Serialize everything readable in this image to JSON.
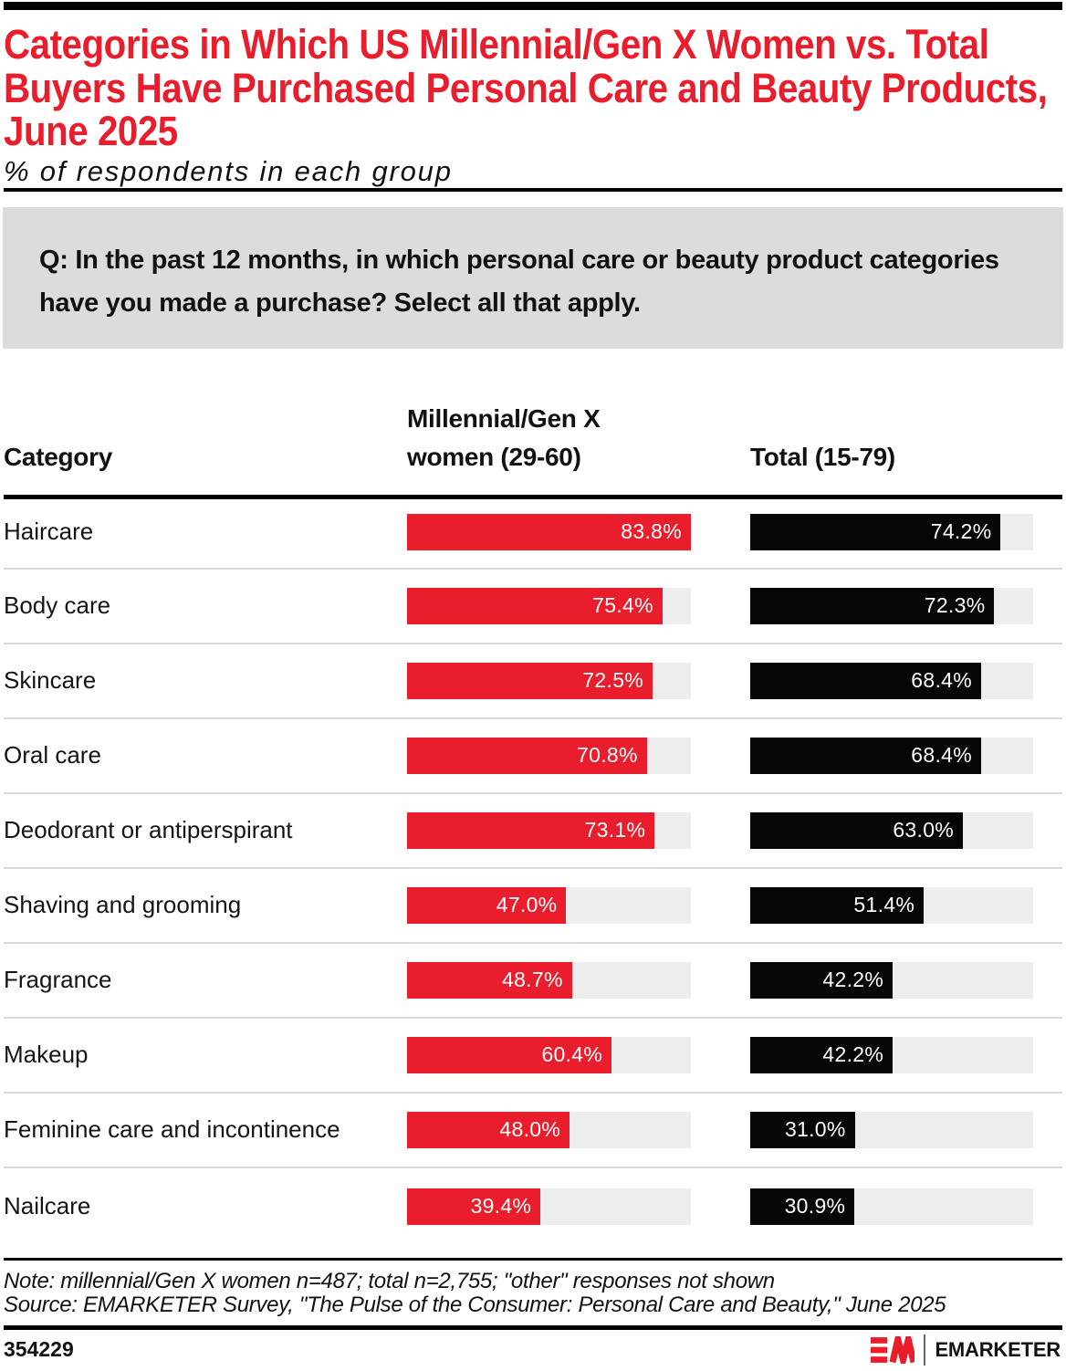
{
  "colors": {
    "accent_red": "#e91d2c",
    "bar_black": "#060606",
    "track_gray": "#ededed",
    "divider_gray": "#d9d9d9",
    "question_box_bg": "#dcdcdc"
  },
  "title": "Categories in Which US Millennial/Gen X Women vs. Total\nBuyers Have Purchased Personal Care and Beauty Products,\nJune 2025",
  "subtitle": "% of respondents in each group",
  "question": "Q: In the past 12 months, in which personal care or beauty product categories\nhave you made a purchase? Select all that apply.",
  "table": {
    "category_header": "Category",
    "women_header": "Millennial/Gen X\nwomen (29-60)",
    "total_header": "Total (15-79)"
  },
  "chart_data": {
    "type": "bar",
    "orientation": "horizontal",
    "categories": [
      "Haircare",
      "Body care",
      "Skincare",
      "Oral care",
      "Deodorant or antiperspirant",
      "Shaving and grooming",
      "Fragrance",
      "Makeup",
      "Feminine care and incontinence",
      "Nailcare"
    ],
    "series": [
      {
        "name": "Millennial/Gen X women (29-60)",
        "color": "#e91d2c",
        "values": [
          83.8,
          75.4,
          72.5,
          70.8,
          73.1,
          47.0,
          48.7,
          60.4,
          48.0,
          39.4
        ]
      },
      {
        "name": "Total (15-79)",
        "color": "#060606",
        "values": [
          74.2,
          72.3,
          68.4,
          68.4,
          63.0,
          51.4,
          42.2,
          42.2,
          31.0,
          30.9
        ]
      }
    ],
    "value_suffix": "%",
    "value_labels_shown": true,
    "xmax": 83.8,
    "title": "Categories in Which US Millennial/Gen X Women vs. Total Buyers Have Purchased Personal Care and Beauty Products, June 2025",
    "ylabel": "Category",
    "legend_position": "column-headers",
    "grid": false
  },
  "note": "Note: millennial/Gen X women n=487; total n=2,755; \"other\" responses not shown",
  "source": "Source: EMARKETER Survey, \"The Pulse of the Consumer: Personal Care and Beauty,\" June 2025",
  "footer": {
    "chart_id": "354229",
    "logo_monogram": "EM",
    "brand": "EMARKETER"
  }
}
